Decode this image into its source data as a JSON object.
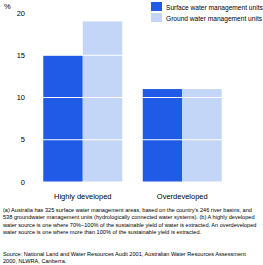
{
  "chart_data": {
    "type": "bar",
    "y_label": "%",
    "categories": [
      "Highly developed",
      "Overdeveloped"
    ],
    "series": [
      {
        "name": "Surface water management units",
        "color": "#1f5be6",
        "values": [
          15,
          11
        ]
      },
      {
        "name": "Ground water management units",
        "color": "#c4d6f7",
        "values": [
          19,
          11
        ]
      }
    ],
    "ylim": [
      0,
      20
    ],
    "yticks": [
      0,
      5,
      10,
      15,
      20
    ],
    "grid": true,
    "legend": "top-right",
    "notes": [
      "(a) Australia has 325 surface water management areas, based on the country's 246 river basins, and 538 groundwater management units (hydrologically connected water systems). (b) A highly developed water source is one where 70%–100% of the sustainable yield of water is extracted. An overdeveloped water source is one where more than 100% of the sustainable yield is extracted.",
      "Source: National Land and Water Resources Audit 2001, Australian Water Resources Assessment 2000, NLWRA, Canberra."
    ]
  }
}
